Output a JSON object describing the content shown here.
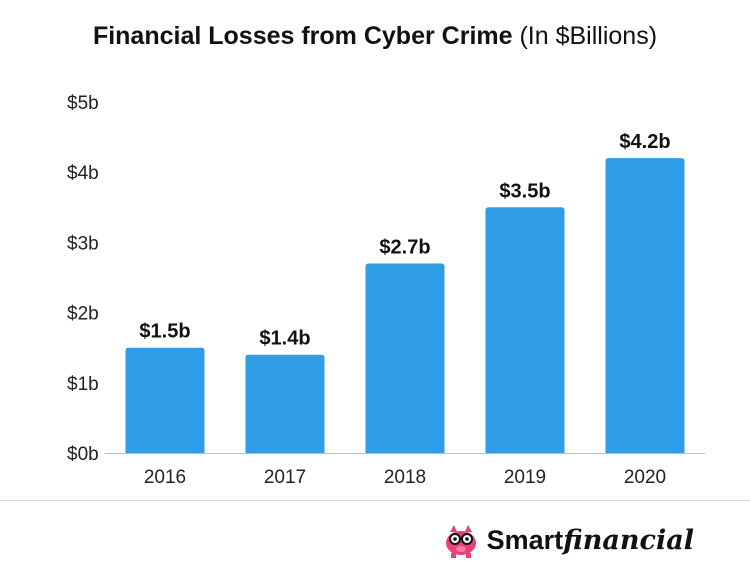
{
  "title": {
    "main": "Financial Losses from Cyber Crime",
    "sub": "(In $Billions)"
  },
  "brand": {
    "part1": "Smart",
    "part2": "financial"
  },
  "colors": {
    "bar": "#2f9ee6",
    "axis": "#bbbbbb",
    "divider": "#d9d9d9"
  },
  "chart_data": {
    "type": "bar",
    "title": "Financial Losses from Cyber Crime (In $Billions)",
    "categories": [
      "2016",
      "2017",
      "2018",
      "2019",
      "2020"
    ],
    "values": [
      1.5,
      1.4,
      2.7,
      3.5,
      4.2
    ],
    "data_labels": [
      "$1.5b",
      "$1.4b",
      "$2.7b",
      "$3.5b",
      "$4.2b"
    ],
    "ylim": [
      0,
      5
    ],
    "yticks": [
      0,
      1,
      2,
      3,
      4,
      5
    ],
    "ytick_labels": [
      "$0b",
      "$1b",
      "$2b",
      "$3b",
      "$4b",
      "$5b"
    ],
    "xlabel": "",
    "ylabel": "",
    "grid": false,
    "legend": "none"
  }
}
